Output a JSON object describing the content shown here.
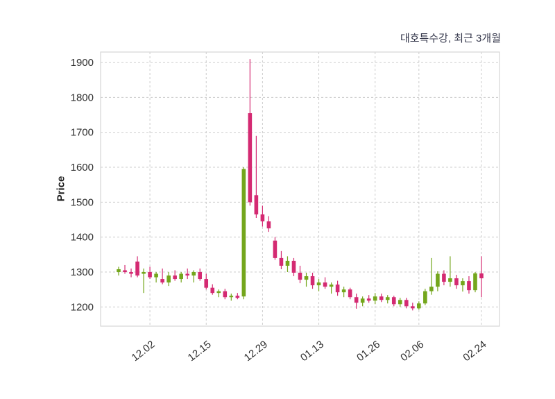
{
  "title": "대호특수강, 최근 3개월",
  "ylabel": "Price",
  "chart_data": {
    "type": "candlestick",
    "title": "대호특수강, 최근 3개월",
    "xlabel": "",
    "ylabel": "Price",
    "ylim": [
      1145,
      1930
    ],
    "yticks": [
      1200,
      1300,
      1400,
      1500,
      1600,
      1700,
      1800,
      1900
    ],
    "xticks": [
      {
        "i": 5,
        "label": "12.02"
      },
      {
        "i": 14,
        "label": "12.15"
      },
      {
        "i": 23,
        "label": "12.29"
      },
      {
        "i": 32,
        "label": "01.13"
      },
      {
        "i": 41,
        "label": "01.26"
      },
      {
        "i": 48,
        "label": "02.06"
      },
      {
        "i": 58,
        "label": "02.24"
      }
    ],
    "colors": {
      "up": "#74a61c",
      "down": "#d42a72",
      "grid": "#cccccc",
      "frame": "#d6d6d6",
      "text": "#2e2e2e",
      "background": "#ffffff"
    },
    "legend": "none",
    "grid": "dashed",
    "candles_format": "[open, high, low, close]",
    "candles": [
      [
        1300,
        1315,
        1290,
        1308
      ],
      [
        1305,
        1320,
        1295,
        1300
      ],
      [
        1300,
        1310,
        1285,
        1295
      ],
      [
        1330,
        1345,
        1285,
        1290
      ],
      [
        1295,
        1310,
        1240,
        1300
      ],
      [
        1300,
        1315,
        1280,
        1285
      ],
      [
        1285,
        1300,
        1270,
        1295
      ],
      [
        1280,
        1310,
        1265,
        1270
      ],
      [
        1270,
        1300,
        1260,
        1290
      ],
      [
        1290,
        1305,
        1275,
        1280
      ],
      [
        1280,
        1300,
        1270,
        1295
      ],
      [
        1295,
        1310,
        1280,
        1290
      ],
      [
        1290,
        1305,
        1270,
        1300
      ],
      [
        1300,
        1310,
        1275,
        1280
      ],
      [
        1280,
        1295,
        1250,
        1255
      ],
      [
        1255,
        1265,
        1235,
        1240
      ],
      [
        1240,
        1250,
        1228,
        1245
      ],
      [
        1245,
        1252,
        1222,
        1228
      ],
      [
        1228,
        1238,
        1218,
        1232
      ],
      [
        1232,
        1240,
        1222,
        1226
      ],
      [
        1230,
        1600,
        1222,
        1595
      ],
      [
        1755,
        1910,
        1490,
        1500
      ],
      [
        1520,
        1690,
        1455,
        1465
      ],
      [
        1465,
        1490,
        1430,
        1445
      ],
      [
        1445,
        1460,
        1415,
        1425
      ],
      [
        1390,
        1400,
        1335,
        1340
      ],
      [
        1340,
        1360,
        1308,
        1318
      ],
      [
        1318,
        1345,
        1300,
        1332
      ],
      [
        1332,
        1340,
        1288,
        1298
      ],
      [
        1298,
        1318,
        1268,
        1278
      ],
      [
        1278,
        1298,
        1258,
        1288
      ],
      [
        1288,
        1298,
        1252,
        1262
      ],
      [
        1262,
        1280,
        1245,
        1270
      ],
      [
        1270,
        1285,
        1252,
        1258
      ],
      [
        1258,
        1270,
        1238,
        1264
      ],
      [
        1264,
        1275,
        1232,
        1242
      ],
      [
        1242,
        1258,
        1228,
        1250
      ],
      [
        1250,
        1255,
        1222,
        1228
      ],
      [
        1228,
        1238,
        1195,
        1212
      ],
      [
        1212,
        1230,
        1202,
        1224
      ],
      [
        1224,
        1234,
        1212,
        1218
      ],
      [
        1218,
        1240,
        1208,
        1230
      ],
      [
        1230,
        1238,
        1214,
        1220
      ],
      [
        1220,
        1234,
        1210,
        1228
      ],
      [
        1228,
        1232,
        1202,
        1208
      ],
      [
        1208,
        1226,
        1200,
        1220
      ],
      [
        1220,
        1226,
        1196,
        1202
      ],
      [
        1202,
        1212,
        1190,
        1196
      ],
      [
        1196,
        1216,
        1192,
        1210
      ],
      [
        1210,
        1252,
        1205,
        1245
      ],
      [
        1245,
        1340,
        1235,
        1258
      ],
      [
        1258,
        1302,
        1245,
        1295
      ],
      [
        1295,
        1305,
        1262,
        1272
      ],
      [
        1272,
        1345,
        1258,
        1282
      ],
      [
        1282,
        1292,
        1252,
        1262
      ],
      [
        1262,
        1282,
        1244,
        1274
      ],
      [
        1274,
        1288,
        1238,
        1248
      ],
      [
        1248,
        1300,
        1242,
        1296
      ],
      [
        1296,
        1345,
        1228,
        1282
      ]
    ]
  }
}
